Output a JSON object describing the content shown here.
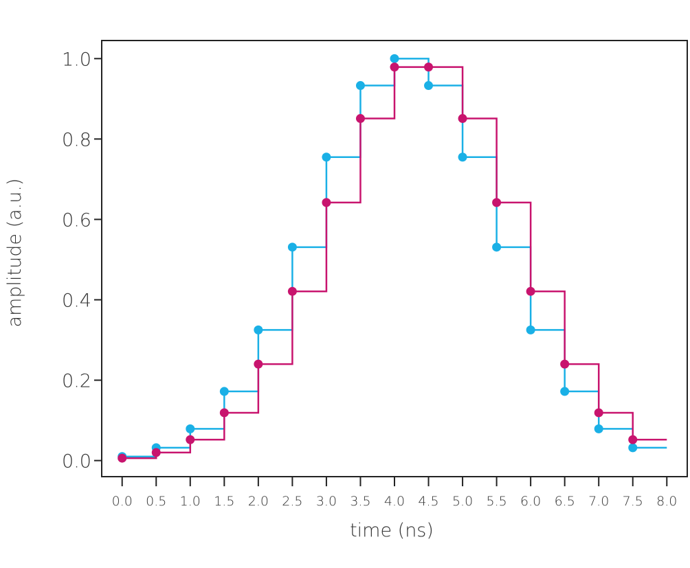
{
  "chart_data": {
    "type": "step",
    "title": "",
    "xlabel": "time (ns)",
    "ylabel": "amplitude (a.u.)",
    "xlim": [
      -0.3,
      8.3
    ],
    "ylim": [
      -0.04,
      1.045
    ],
    "x_ticks": [
      "0.0",
      "0.5",
      "1.0",
      "1.5",
      "2.0",
      "2.5",
      "3.0",
      "3.5",
      "4.0",
      "4.5",
      "5.0",
      "5.5",
      "6.0",
      "6.5",
      "7.0",
      "7.5",
      "8.0"
    ],
    "y_ticks": [
      "0.0",
      "0.2",
      "0.4",
      "0.6",
      "0.8",
      "1.0"
    ],
    "grid": false,
    "legend": false,
    "step_end_x": 8.0,
    "series": [
      {
        "color": "#1ab0e6",
        "x": [
          0.0,
          0.5,
          1.0,
          1.5,
          2.0,
          2.5,
          3.0,
          3.5,
          4.0,
          4.5,
          5.0,
          5.5,
          6.0,
          6.5,
          7.0,
          7.5
        ],
        "values": [
          0.01,
          0.032,
          0.079,
          0.172,
          0.325,
          0.531,
          0.755,
          0.933,
          1.0,
          0.933,
          0.755,
          0.531,
          0.325,
          0.172,
          0.079,
          0.032
        ]
      },
      {
        "color": "#c8146e",
        "x": [
          0.0,
          0.5,
          1.0,
          1.5,
          2.0,
          2.5,
          3.0,
          3.5,
          4.0,
          4.5,
          5.0,
          5.5,
          6.0,
          6.5,
          7.0,
          7.5
        ],
        "values": [
          0.006,
          0.02,
          0.052,
          0.119,
          0.24,
          0.421,
          0.642,
          0.851,
          0.979,
          0.979,
          0.851,
          0.642,
          0.421,
          0.24,
          0.119,
          0.052
        ]
      }
    ]
  }
}
